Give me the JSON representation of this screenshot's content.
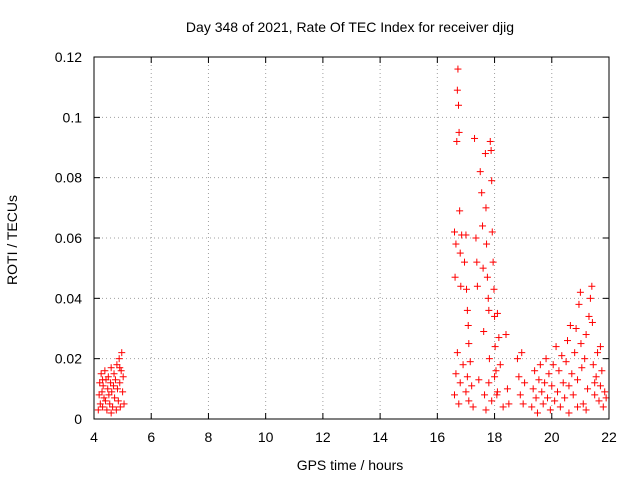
{
  "chart_data": {
    "type": "scatter",
    "title": "Day 348 of 2021, Rate Of TEC Index for receiver djig",
    "xlabel": "GPS time / hours",
    "ylabel": "ROTI / TECUs",
    "xlim": [
      4,
      22
    ],
    "ylim": [
      0,
      0.12
    ],
    "x_ticks": [
      4,
      6,
      8,
      10,
      12,
      14,
      16,
      18,
      20,
      22
    ],
    "x_tick_labels": [
      "4",
      "6",
      "8",
      "10",
      "12",
      "14",
      "16",
      "18",
      "20",
      "22"
    ],
    "y_ticks": [
      0,
      0.02,
      0.04,
      0.06,
      0.08,
      0.1,
      0.12
    ],
    "y_tick_labels": [
      "0",
      "0.02",
      "0.04",
      "0.06",
      "0.08",
      "0.1",
      "0.12"
    ],
    "grid": true,
    "marker": "+",
    "color": "#ff0000",
    "series": [
      {
        "name": "ROTI",
        "points": [
          [
            4.15,
            0.003
          ],
          [
            4.18,
            0.008
          ],
          [
            4.2,
            0.012
          ],
          [
            4.22,
            0.005
          ],
          [
            4.25,
            0.015
          ],
          [
            4.28,
            0.009
          ],
          [
            4.3,
            0.004
          ],
          [
            4.32,
            0.011
          ],
          [
            4.35,
            0.007
          ],
          [
            4.38,
            0.016
          ],
          [
            4.4,
            0.006
          ],
          [
            4.42,
            0.013
          ],
          [
            4.45,
            0.003
          ],
          [
            4.48,
            0.01
          ],
          [
            4.5,
            0.014
          ],
          [
            4.52,
            0.008
          ],
          [
            4.55,
            0.005
          ],
          [
            4.58,
            0.012
          ],
          [
            4.6,
            0.017
          ],
          [
            4.62,
            0.009
          ],
          [
            4.65,
            0.004
          ],
          [
            4.68,
            0.011
          ],
          [
            4.7,
            0.015
          ],
          [
            4.72,
            0.007
          ],
          [
            4.75,
            0.013
          ],
          [
            4.78,
            0.003
          ],
          [
            4.8,
            0.018
          ],
          [
            4.82,
            0.01
          ],
          [
            4.85,
            0.006
          ],
          [
            4.88,
            0.02
          ],
          [
            4.9,
            0.012
          ],
          [
            4.92,
            0.004
          ],
          [
            4.95,
            0.016
          ],
          [
            4.97,
            0.022
          ],
          [
            5.0,
            0.009
          ],
          [
            5.02,
            0.014
          ],
          [
            5.05,
            0.005
          ],
          [
            4.3,
            0.013
          ],
          [
            4.6,
            0.002
          ],
          [
            4.9,
            0.017
          ],
          [
            16.6,
            0.062
          ],
          [
            16.62,
            0.047
          ],
          [
            16.65,
            0.058
          ],
          [
            16.68,
            0.092
          ],
          [
            16.7,
            0.109
          ],
          [
            16.72,
            0.116
          ],
          [
            16.74,
            0.104
          ],
          [
            16.76,
            0.095
          ],
          [
            16.78,
            0.069
          ],
          [
            16.8,
            0.055
          ],
          [
            16.82,
            0.044
          ],
          [
            16.85,
            0.061
          ],
          [
            16.6,
            0.008
          ],
          [
            16.65,
            0.015
          ],
          [
            16.7,
            0.022
          ],
          [
            16.75,
            0.005
          ],
          [
            16.8,
            0.012
          ],
          [
            16.9,
            0.018
          ],
          [
            16.95,
            0.052
          ],
          [
            17.0,
            0.061
          ],
          [
            17.02,
            0.043
          ],
          [
            17.05,
            0.036
          ],
          [
            17.08,
            0.031
          ],
          [
            17.1,
            0.025
          ],
          [
            17.0,
            0.009
          ],
          [
            17.05,
            0.014
          ],
          [
            17.1,
            0.006
          ],
          [
            17.15,
            0.019
          ],
          [
            17.2,
            0.011
          ],
          [
            17.25,
            0.004
          ],
          [
            17.3,
            0.093
          ],
          [
            17.35,
            0.06
          ],
          [
            17.38,
            0.052
          ],
          [
            17.4,
            0.044
          ],
          [
            17.45,
            0.013
          ],
          [
            17.5,
            0.082
          ],
          [
            17.55,
            0.075
          ],
          [
            17.58,
            0.064
          ],
          [
            17.6,
            0.05
          ],
          [
            17.62,
            0.029
          ],
          [
            17.65,
            0.008
          ],
          [
            17.68,
            0.088
          ],
          [
            17.7,
            0.07
          ],
          [
            17.72,
            0.058
          ],
          [
            17.75,
            0.047
          ],
          [
            17.78,
            0.04
          ],
          [
            17.8,
            0.036
          ],
          [
            17.82,
            0.02
          ],
          [
            17.85,
            0.092
          ],
          [
            17.88,
            0.089
          ],
          [
            17.9,
            0.079
          ],
          [
            17.92,
            0.062
          ],
          [
            17.95,
            0.052
          ],
          [
            17.98,
            0.043
          ],
          [
            18.0,
            0.034
          ],
          [
            18.02,
            0.024
          ],
          [
            18.05,
            0.016
          ],
          [
            18.08,
            0.008
          ],
          [
            18.1,
            0.035
          ],
          [
            18.15,
            0.027
          ],
          [
            17.7,
            0.003
          ],
          [
            17.8,
            0.012
          ],
          [
            17.9,
            0.006
          ],
          [
            18.0,
            0.014
          ],
          [
            18.1,
            0.009
          ],
          [
            18.2,
            0.018
          ],
          [
            18.3,
            0.004
          ],
          [
            18.4,
            0.028
          ],
          [
            18.45,
            0.01
          ],
          [
            18.5,
            0.005
          ],
          [
            18.8,
            0.02
          ],
          [
            18.85,
            0.014
          ],
          [
            18.9,
            0.008
          ],
          [
            18.95,
            0.022
          ],
          [
            19.0,
            0.005
          ],
          [
            19.05,
            0.012
          ],
          [
            19.3,
            0.004
          ],
          [
            19.35,
            0.01
          ],
          [
            19.4,
            0.016
          ],
          [
            19.45,
            0.007
          ],
          [
            19.5,
            0.002
          ],
          [
            19.55,
            0.013
          ],
          [
            19.6,
            0.018
          ],
          [
            19.65,
            0.009
          ],
          [
            19.7,
            0.005
          ],
          [
            19.75,
            0.012
          ],
          [
            19.8,
            0.02
          ],
          [
            19.85,
            0.007
          ],
          [
            19.9,
            0.015
          ],
          [
            19.95,
            0.003
          ],
          [
            20.0,
            0.011
          ],
          [
            20.05,
            0.018
          ],
          [
            20.1,
            0.006
          ],
          [
            20.15,
            0.024
          ],
          [
            20.2,
            0.009
          ],
          [
            20.25,
            0.016
          ],
          [
            20.3,
            0.004
          ],
          [
            20.35,
            0.021
          ],
          [
            20.4,
            0.012
          ],
          [
            20.45,
            0.007
          ],
          [
            20.5,
            0.019
          ],
          [
            20.55,
            0.026
          ],
          [
            20.6,
            0.011
          ],
          [
            20.65,
            0.031
          ],
          [
            20.7,
            0.015
          ],
          [
            20.75,
            0.008
          ],
          [
            20.8,
            0.022
          ],
          [
            20.85,
            0.03
          ],
          [
            20.9,
            0.013
          ],
          [
            20.95,
            0.038
          ],
          [
            21.0,
            0.042
          ],
          [
            21.02,
            0.025
          ],
          [
            21.05,
            0.017
          ],
          [
            21.1,
            0.005
          ],
          [
            21.15,
            0.02
          ],
          [
            21.2,
            0.028
          ],
          [
            21.25,
            0.01
          ],
          [
            21.3,
            0.034
          ],
          [
            21.35,
            0.04
          ],
          [
            21.4,
            0.044
          ],
          [
            21.42,
            0.032
          ],
          [
            21.45,
            0.018
          ],
          [
            21.5,
            0.008
          ],
          [
            21.55,
            0.014
          ],
          [
            21.6,
            0.022
          ],
          [
            21.65,
            0.006
          ],
          [
            21.7,
            0.011
          ],
          [
            21.75,
            0.016
          ],
          [
            21.8,
            0.004
          ],
          [
            21.85,
            0.009
          ],
          [
            21.9,
            0.007
          ],
          [
            20.6,
            0.002
          ],
          [
            20.9,
            0.004
          ],
          [
            21.2,
            0.003
          ],
          [
            21.5,
            0.012
          ],
          [
            21.7,
            0.024
          ]
        ]
      }
    ]
  }
}
